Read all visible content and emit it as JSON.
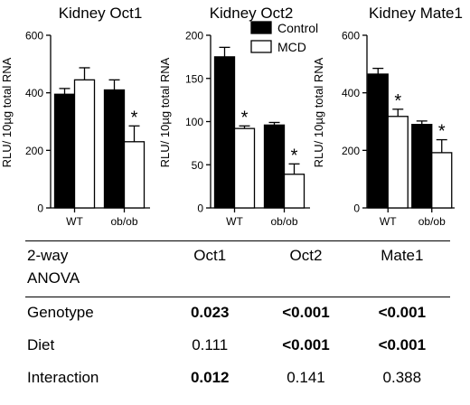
{
  "chart_data": [
    {
      "type": "bar",
      "title": "Kidney Oct1",
      "ylabel": "RLU/ 10µg total RNA",
      "categories": [
        "WT",
        "ob/ob"
      ],
      "ylim": [
        0,
        600
      ],
      "yticks": [
        "0",
        "200",
        "400",
        "600"
      ],
      "series": [
        {
          "name": "Control",
          "color": "#000000",
          "values": [
            395,
            410
          ],
          "errors": [
            20,
            35
          ]
        },
        {
          "name": "MCD",
          "color": "#ffffff",
          "values": [
            445,
            230
          ],
          "errors": [
            42,
            55
          ]
        }
      ],
      "annotations": [
        {
          "series": "MCD",
          "category": "ob/ob",
          "text": "*"
        }
      ]
    },
    {
      "type": "bar",
      "title": "Kidney Oct2",
      "ylabel": "RLU/ 10µg total RNA",
      "categories": [
        "WT",
        "ob/ob"
      ],
      "ylim": [
        0,
        200
      ],
      "yticks": [
        "0",
        "50",
        "100",
        "150",
        "200"
      ],
      "series": [
        {
          "name": "Control",
          "color": "#000000",
          "values": [
            175,
            96
          ],
          "errors": [
            11,
            3
          ]
        },
        {
          "name": "MCD",
          "color": "#ffffff",
          "values": [
            92,
            39
          ],
          "errors": [
            3,
            12
          ]
        }
      ],
      "annotations": [
        {
          "series": "MCD",
          "category": "WT",
          "text": "*"
        },
        {
          "series": "MCD",
          "category": "ob/ob",
          "text": "*"
        }
      ],
      "legend": {
        "placement": "top-right",
        "entries": [
          "Control",
          "MCD"
        ]
      }
    },
    {
      "type": "bar",
      "title": "Kidney Mate1",
      "ylabel": "RLU/ 10µg total RNA",
      "categories": [
        "WT",
        "ob/ob"
      ],
      "ylim": [
        0,
        600
      ],
      "yticks": [
        "0",
        "200",
        "400",
        "600"
      ],
      "series": [
        {
          "name": "Control",
          "color": "#000000",
          "values": [
            465,
            290
          ],
          "errors": [
            20,
            12
          ]
        },
        {
          "name": "MCD",
          "color": "#ffffff",
          "values": [
            318,
            192
          ],
          "errors": [
            25,
            45
          ]
        }
      ],
      "annotations": [
        {
          "series": "MCD",
          "category": "WT",
          "text": "*"
        },
        {
          "series": "MCD",
          "category": "ob/ob",
          "text": "*"
        }
      ]
    }
  ],
  "anova_table": {
    "header": [
      "2-way",
      "Oct1",
      "Oct2",
      "Mate1"
    ],
    "header_line2": "ANOVA",
    "rows": [
      {
        "label": "Genotype",
        "values": [
          "0.023",
          "<0.001",
          "<0.001"
        ],
        "bold": [
          true,
          true,
          true
        ]
      },
      {
        "label": "Diet",
        "values": [
          "0.111",
          "<0.001",
          "<0.001"
        ],
        "bold": [
          false,
          true,
          true
        ]
      },
      {
        "label": "Interaction",
        "values": [
          "0.012",
          "0.141",
          "0.388"
        ],
        "bold": [
          true,
          false,
          false
        ]
      }
    ]
  }
}
